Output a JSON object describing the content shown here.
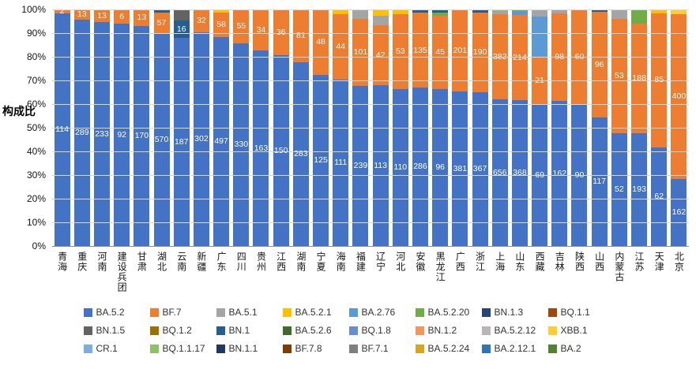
{
  "chart_data": {
    "type": "bar",
    "variant": "100%-stacked-column",
    "title": "",
    "xlabel": "",
    "ylabel": "构成比",
    "ylim": [
      0,
      100
    ],
    "grid": true,
    "legend_position": "bottom",
    "y_ticks": [
      "100%",
      "90%",
      "80%",
      "70%",
      "60%",
      "50%",
      "40%",
      "30%",
      "20%",
      "10%",
      "0%"
    ],
    "categories": [
      "青海",
      "重庆",
      "河南",
      "建设兵团",
      "甘肃",
      "湖北",
      "云南",
      "新疆",
      "广东",
      "四川",
      "贵州",
      "江西",
      "湖南",
      "宁夏",
      "海南",
      "福建",
      "辽宁",
      "河北",
      "安徽",
      "黑龙江",
      "广西",
      "浙江",
      "上海",
      "山东",
      "西藏",
      "吉林",
      "陕西",
      "山西",
      "内蒙古",
      "江苏",
      "天津",
      "北京"
    ],
    "legend": [
      "BA.5.2",
      "BF.7",
      "BA.5.1",
      "BA.5.2.1",
      "BA.2.76",
      "BA.5.2.20",
      "BN.1.3",
      "BQ.1.1",
      "BN.1.5",
      "BQ.1.2",
      "BN.1",
      "BA.5.2.6",
      "BQ.1.8",
      "BN.1.2",
      "BA.5.2.12",
      "XBB.1",
      "CR.1",
      "BQ.1.1.17",
      "BN.1.1",
      "BF.7.8",
      "BF.7.1",
      "BA.5.2.24",
      "BA.2.12.1",
      "BA.2"
    ],
    "series_colors": {
      "BA.5.2": "#4472C4",
      "BF.7": "#ED7D31",
      "BA.5.1": "#A5A5A5",
      "BA.5.2.1": "#FFC000",
      "BA.2.76": "#5B9BD5",
      "BA.5.2.20": "#70AD47",
      "BN.1.3": "#264478",
      "BQ.1.1": "#9E480E",
      "BN.1.5": "#636363",
      "BQ.1.2": "#997300",
      "BN.1": "#255E91",
      "BA.5.2.6": "#43682B",
      "BQ.1.8": "#698ED0",
      "BN.1.2": "#F1975A",
      "BA.5.2.12": "#B7B7B7",
      "XBB.1": "#FFCD33",
      "CR.1": "#7CAFDD",
      "BQ.1.1.17": "#8CC168",
      "BN.1.1": "#1F3864",
      "BF.7.8": "#833C00",
      "BF.7.1": "#7F7F7F",
      "BA.5.2.24": "#D9A521",
      "BA.2.12.1": "#2E75B6",
      "BA.2": "#548235"
    },
    "bars": [
      {
        "category": "青海",
        "segments": [
          {
            "series": "BA.5.2",
            "pct": 98.3,
            "label": "114"
          },
          {
            "series": "BF.7",
            "pct": 1.7,
            "label": "2"
          }
        ]
      },
      {
        "category": "重庆",
        "segments": [
          {
            "series": "BA.5.2",
            "pct": 95.7,
            "label": "289"
          },
          {
            "series": "BF.7",
            "pct": 4.3,
            "label": "13"
          }
        ]
      },
      {
        "category": "河南",
        "segments": [
          {
            "series": "BA.5.2",
            "pct": 94.7,
            "label": "233"
          },
          {
            "series": "BF.7",
            "pct": 5.3,
            "label": "13"
          }
        ]
      },
      {
        "category": "建设兵团",
        "segments": [
          {
            "series": "BA.5.2",
            "pct": 93.9,
            "label": "92"
          },
          {
            "series": "BF.7",
            "pct": 6.1,
            "label": "6"
          }
        ]
      },
      {
        "category": "甘肃",
        "segments": [
          {
            "series": "BA.5.2",
            "pct": 92.9,
            "label": "170"
          },
          {
            "series": "BF.7",
            "pct": 7.1,
            "label": "13"
          }
        ]
      },
      {
        "category": "湖北",
        "segments": [
          {
            "series": "BA.5.2",
            "pct": 89.8,
            "label": "570"
          },
          {
            "series": "BF.7",
            "pct": 9.0,
            "label": "57"
          },
          {
            "series": "BN.1",
            "pct": 1.2,
            "label": ""
          }
        ]
      },
      {
        "category": "云南",
        "segments": [
          {
            "series": "BA.5.2",
            "pct": 88.0,
            "label": "187"
          },
          {
            "series": "BN.1",
            "pct": 7.5,
            "label": "16"
          },
          {
            "series": "BN.1.5",
            "pct": 4.5,
            "label": ""
          }
        ]
      },
      {
        "category": "新疆",
        "segments": [
          {
            "series": "BA.5.2",
            "pct": 90.4,
            "label": "302"
          },
          {
            "series": "BF.7",
            "pct": 9.6,
            "label": "32"
          }
        ]
      },
      {
        "category": "广东",
        "segments": [
          {
            "series": "BA.5.2",
            "pct": 88.5,
            "label": "497"
          },
          {
            "series": "BF.7",
            "pct": 10.3,
            "label": "58"
          },
          {
            "series": "BA.5.2.1",
            "pct": 1.2,
            "label": ""
          }
        ]
      },
      {
        "category": "四川",
        "segments": [
          {
            "series": "BA.5.2",
            "pct": 85.7,
            "label": "330"
          },
          {
            "series": "BF.7",
            "pct": 14.3,
            "label": "55"
          }
        ]
      },
      {
        "category": "贵州",
        "segments": [
          {
            "series": "BA.5.2",
            "pct": 82.7,
            "label": "163"
          },
          {
            "series": "BF.7",
            "pct": 17.3,
            "label": "34"
          }
        ]
      },
      {
        "category": "江西",
        "segments": [
          {
            "series": "BA.5.2",
            "pct": 80.6,
            "label": "150"
          },
          {
            "series": "BF.7",
            "pct": 19.4,
            "label": "36"
          }
        ]
      },
      {
        "category": "湖南",
        "segments": [
          {
            "series": "BA.5.2",
            "pct": 77.7,
            "label": "283"
          },
          {
            "series": "BF.7",
            "pct": 22.3,
            "label": "81"
          }
        ]
      },
      {
        "category": "宁夏",
        "segments": [
          {
            "series": "BA.5.2",
            "pct": 72.3,
            "label": "125"
          },
          {
            "series": "BF.7",
            "pct": 27.7,
            "label": "48"
          }
        ]
      },
      {
        "category": "海南",
        "segments": [
          {
            "series": "BA.5.2",
            "pct": 70.2,
            "label": "111"
          },
          {
            "series": "BF.7",
            "pct": 27.8,
            "label": "44"
          },
          {
            "series": "BA.5.2.1",
            "pct": 2.0,
            "label": ""
          }
        ]
      },
      {
        "category": "福建",
        "segments": [
          {
            "series": "BA.5.2",
            "pct": 67.6,
            "label": "239"
          },
          {
            "series": "BF.7",
            "pct": 28.4,
            "label": "101"
          },
          {
            "series": "BA.5.1",
            "pct": 4.0,
            "label": ""
          }
        ]
      },
      {
        "category": "辽宁",
        "segments": [
          {
            "series": "BA.5.2",
            "pct": 68.0,
            "label": "113"
          },
          {
            "series": "BF.7",
            "pct": 25.3,
            "label": "42"
          },
          {
            "series": "BA.5.1",
            "pct": 4.0,
            "label": ""
          },
          {
            "series": "BA.5.2.1",
            "pct": 2.7,
            "label": ""
          }
        ]
      },
      {
        "category": "河北",
        "segments": [
          {
            "series": "BA.5.2",
            "pct": 66.4,
            "label": "110"
          },
          {
            "series": "BF.7",
            "pct": 31.6,
            "label": "53"
          },
          {
            "series": "BA.5.2.1",
            "pct": 2.0,
            "label": ""
          }
        ]
      },
      {
        "category": "安徽",
        "segments": [
          {
            "series": "BA.5.2",
            "pct": 66.9,
            "label": "286"
          },
          {
            "series": "BF.7",
            "pct": 31.7,
            "label": "135"
          },
          {
            "series": "BN.1",
            "pct": 1.4,
            "label": ""
          }
        ]
      },
      {
        "category": "黑龙江",
        "segments": [
          {
            "series": "BA.5.2",
            "pct": 66.5,
            "label": "96"
          },
          {
            "series": "BF.7",
            "pct": 31.0,
            "label": "45"
          },
          {
            "series": "BA.5.2.20",
            "pct": 1.3,
            "label": ""
          },
          {
            "series": "BN.1",
            "pct": 1.2,
            "label": ""
          }
        ]
      },
      {
        "category": "广西",
        "segments": [
          {
            "series": "BA.5.2",
            "pct": 65.5,
            "label": "381"
          },
          {
            "series": "BF.7",
            "pct": 34.5,
            "label": "201"
          }
        ]
      },
      {
        "category": "浙江",
        "segments": [
          {
            "series": "BA.5.2",
            "pct": 65.0,
            "label": "367"
          },
          {
            "series": "BF.7",
            "pct": 33.6,
            "label": "190"
          },
          {
            "series": "BN.1",
            "pct": 1.4,
            "label": ""
          }
        ]
      },
      {
        "category": "上海",
        "segments": [
          {
            "series": "BA.5.2",
            "pct": 61.9,
            "label": "656"
          },
          {
            "series": "BF.7",
            "pct": 36.1,
            "label": "382"
          },
          {
            "series": "BA.5.1",
            "pct": 1.2,
            "label": ""
          },
          {
            "series": "BQ.1.1.17",
            "pct": 0.8,
            "label": ""
          }
        ]
      },
      {
        "category": "山东",
        "segments": [
          {
            "series": "BA.5.2",
            "pct": 61.8,
            "label": "368"
          },
          {
            "series": "BF.7",
            "pct": 35.9,
            "label": "214"
          },
          {
            "series": "BA.2.76",
            "pct": 1.5,
            "label": ""
          },
          {
            "series": "BA.5.2.20",
            "pct": 0.8,
            "label": ""
          }
        ]
      },
      {
        "category": "西藏",
        "segments": [
          {
            "series": "BA.5.2",
            "pct": 60.0,
            "label": "69"
          },
          {
            "series": "BF.7",
            "pct": 20.0,
            "label": "21"
          },
          {
            "series": "BA.2.76",
            "pct": 17.0,
            "label": ""
          },
          {
            "series": "BA.5.1",
            "pct": 3.0,
            "label": ""
          }
        ]
      },
      {
        "category": "吉林",
        "segments": [
          {
            "series": "BA.5.2",
            "pct": 61.5,
            "label": "162"
          },
          {
            "series": "BF.7",
            "pct": 37.0,
            "label": "98"
          },
          {
            "series": "BA.5.1",
            "pct": 1.5,
            "label": ""
          }
        ]
      },
      {
        "category": "陕西",
        "segments": [
          {
            "series": "BA.5.2",
            "pct": 60.0,
            "label": "90"
          },
          {
            "series": "BF.7",
            "pct": 40.0,
            "label": "60"
          }
        ]
      },
      {
        "category": "山西",
        "segments": [
          {
            "series": "BA.5.2",
            "pct": 54.4,
            "label": "117"
          },
          {
            "series": "BF.7",
            "pct": 44.6,
            "label": "96"
          },
          {
            "series": "BN.1",
            "pct": 1.0,
            "label": ""
          }
        ]
      },
      {
        "category": "内蒙古",
        "segments": [
          {
            "series": "BA.5.2",
            "pct": 47.6,
            "label": "52"
          },
          {
            "series": "BF.7",
            "pct": 48.4,
            "label": "53"
          },
          {
            "series": "BA.5.1",
            "pct": 4.0,
            "label": ""
          }
        ]
      },
      {
        "category": "江苏",
        "segments": [
          {
            "series": "BA.5.2",
            "pct": 47.6,
            "label": "193"
          },
          {
            "series": "BF.7",
            "pct": 46.4,
            "label": "188"
          },
          {
            "series": "BA.5.2.20",
            "pct": 6.0,
            "label": ""
          }
        ]
      },
      {
        "category": "天津",
        "segments": [
          {
            "series": "BA.5.2",
            "pct": 41.8,
            "label": "62"
          },
          {
            "series": "BF.7",
            "pct": 56.7,
            "label": "85"
          },
          {
            "series": "BA.5.2.1",
            "pct": 1.5,
            "label": ""
          }
        ]
      },
      {
        "category": "北京",
        "segments": [
          {
            "series": "BA.5.2",
            "pct": 28.2,
            "label": "162"
          },
          {
            "series": "BF.7",
            "pct": 69.8,
            "label": "400"
          },
          {
            "series": "XBB.1",
            "pct": 2.0,
            "label": ""
          }
        ]
      }
    ]
  }
}
